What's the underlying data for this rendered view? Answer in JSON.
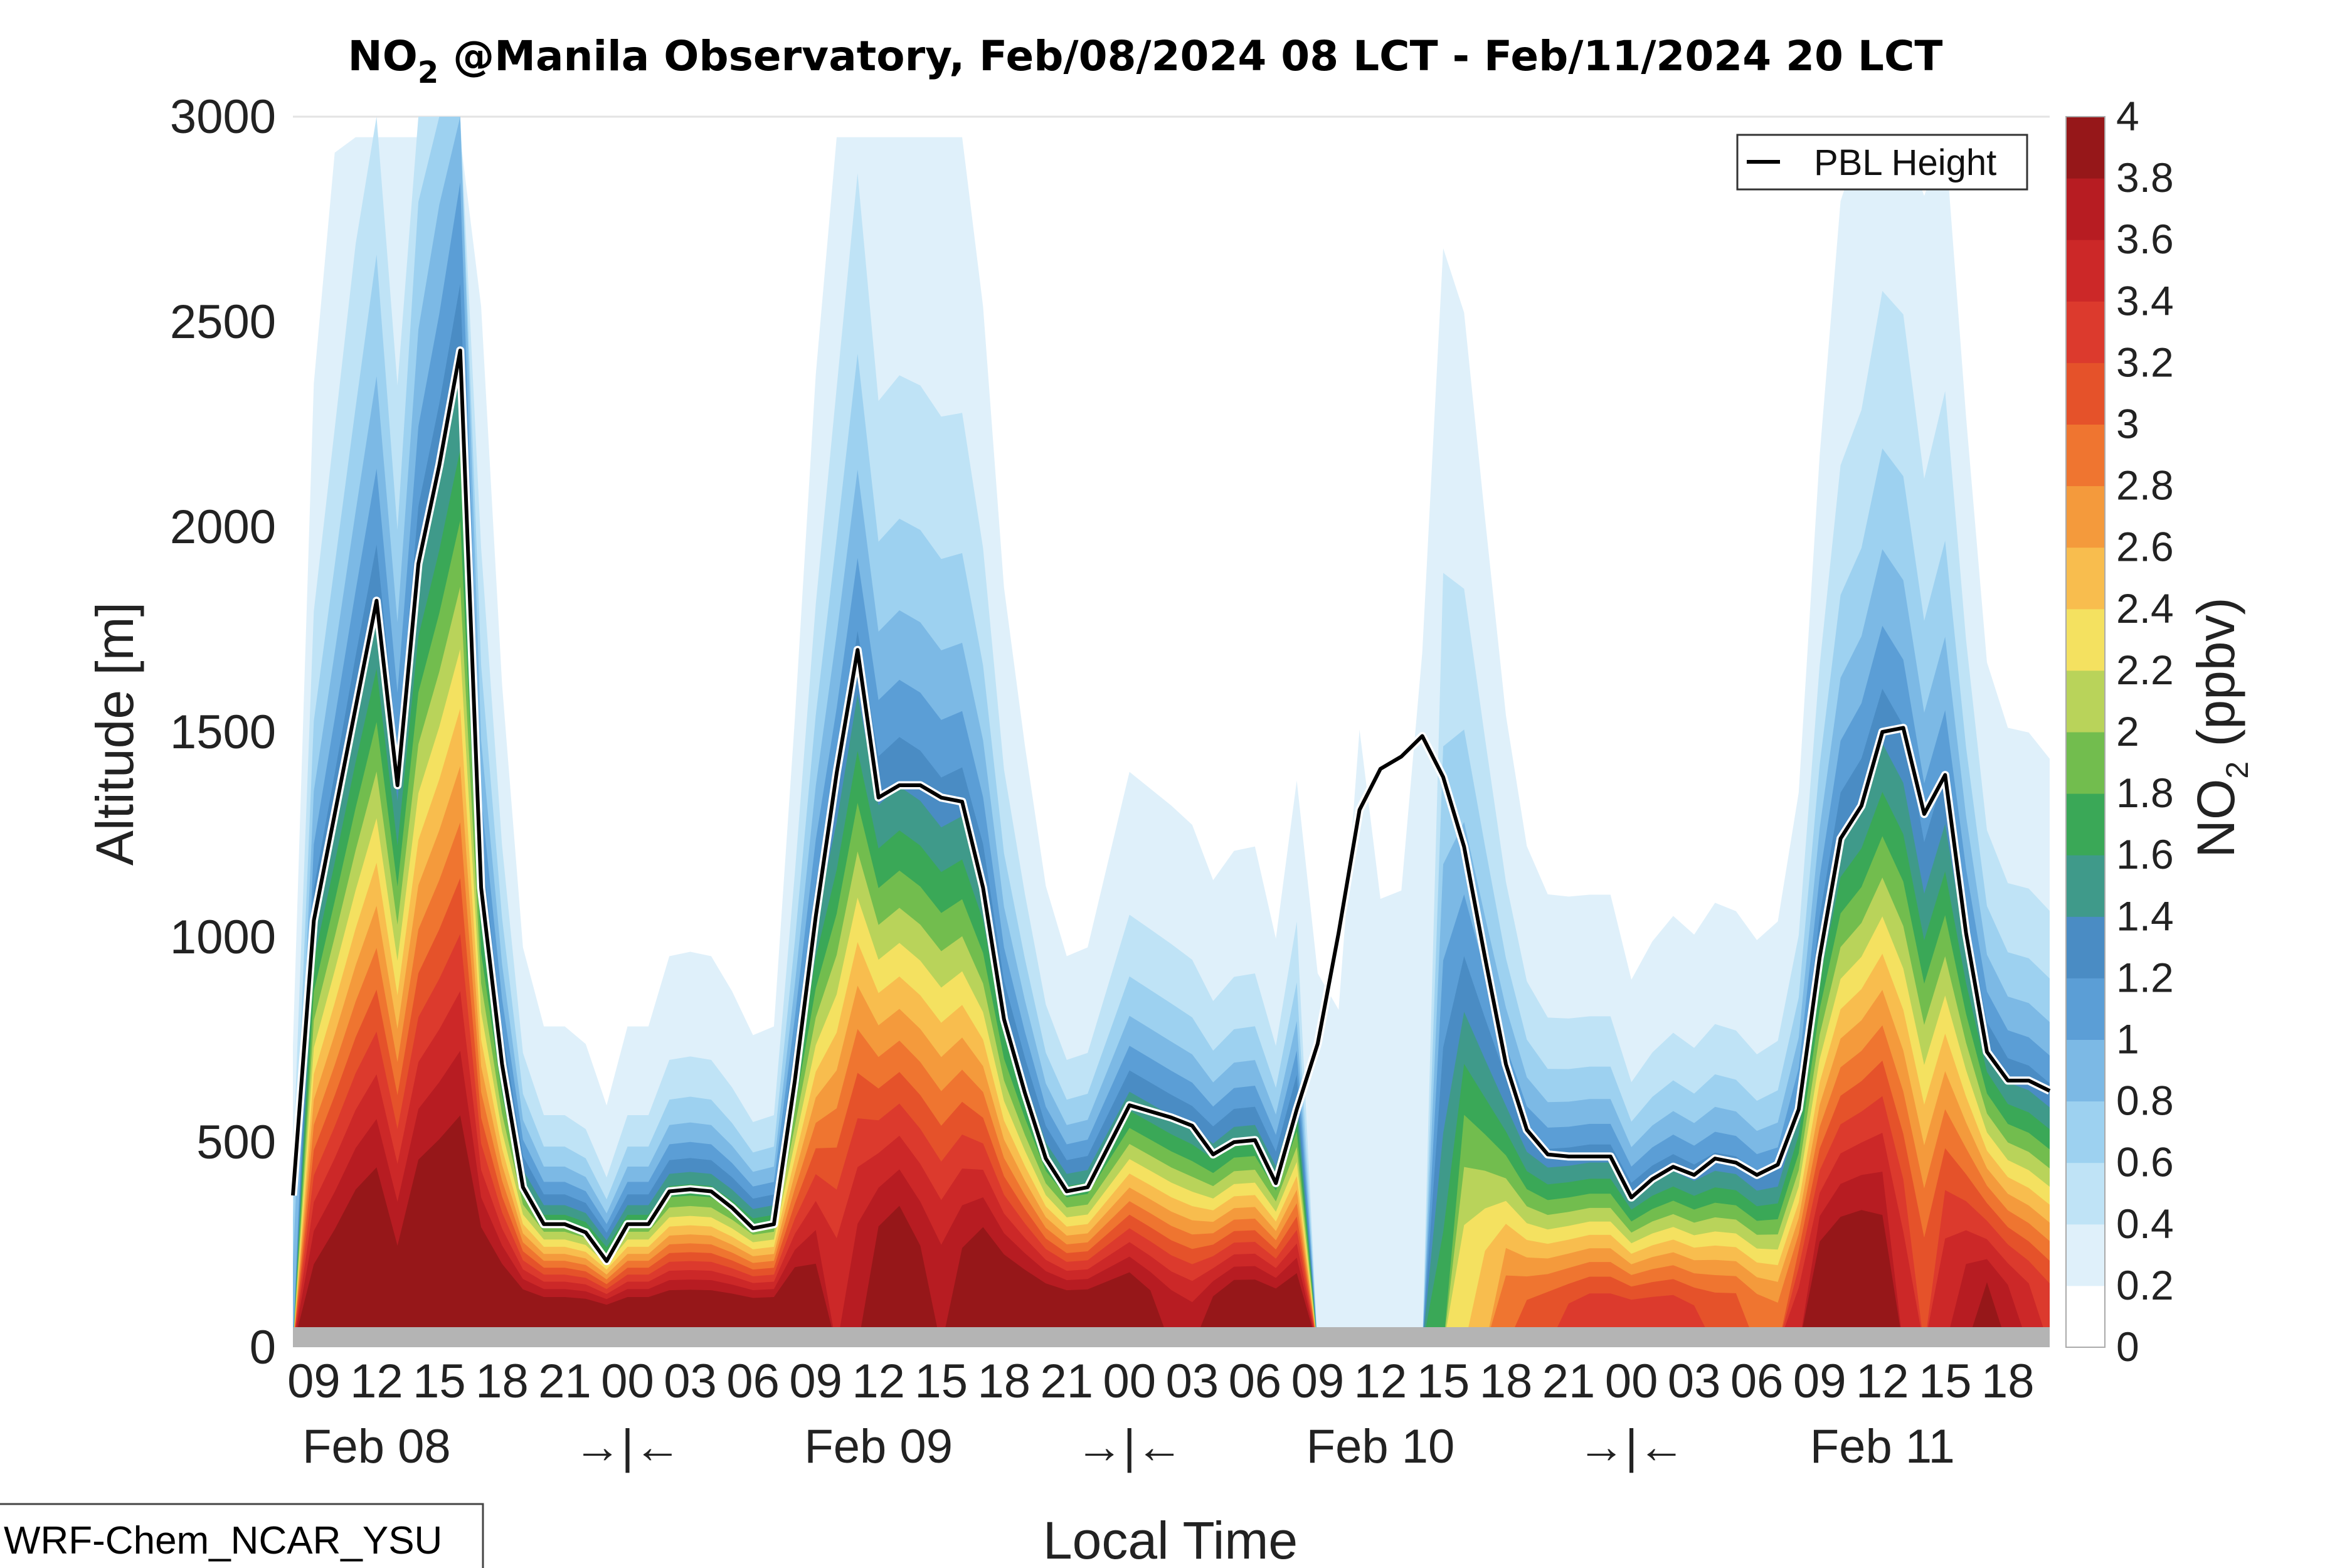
{
  "chart_data": {
    "type": "area",
    "title": "NO₂ @Manila Observatory, Feb/08/2024 08 LCT - Feb/11/2024 20 LCT",
    "title_parts": {
      "pre": "NO",
      "sub": "2",
      "post": " @Manila Observatory, Feb/08/2024 08 LCT - Feb/11/2024 20 LCT"
    },
    "xlabel": "Local Time",
    "ylabel": "Altitude [m]",
    "ylim": [
      0,
      3000
    ],
    "y_ticks": [
      0,
      500,
      1000,
      1500,
      2000,
      2500,
      3000
    ],
    "x_range_hours": [
      0,
      84
    ],
    "hour_tick_labels": [
      "09",
      "12",
      "15",
      "18",
      "21",
      "00",
      "03",
      "06",
      "09",
      "12",
      "15",
      "18",
      "21",
      "00",
      "03",
      "06",
      "09",
      "12",
      "15",
      "18",
      "21",
      "00",
      "03",
      "06",
      "09",
      "12",
      "15",
      "18"
    ],
    "date_labels": [
      "Feb 08",
      "Feb 09",
      "Feb 10",
      "Feb 11"
    ],
    "day_separator_label": "→|←",
    "colorbar": {
      "label_pre": "NO",
      "label_sub": "2",
      "label_post": " (ppbv)",
      "ticks": [
        "0",
        "0.2",
        "0.4",
        "0.6",
        "0.8",
        "1",
        "1.2",
        "1.4",
        "1.6",
        "1.8",
        "2",
        "2.2",
        "2.4",
        "2.6",
        "2.8",
        "3",
        "3.2",
        "3.4",
        "3.6",
        "3.8",
        "4"
      ],
      "colors": [
        "#ffffff",
        "#dff0fa",
        "#bfe3f6",
        "#9dd1f0",
        "#7cb9e5",
        "#5b9ed6",
        "#4a8cc4",
        "#3f9a8a",
        "#3aa857",
        "#72bd4e",
        "#b9d35a",
        "#f4e160",
        "#f8bd4e",
        "#f49a3c",
        "#ef7530",
        "#e5522a",
        "#dc3a2d",
        "#cc2828",
        "#b71c22",
        "#961719"
      ]
    },
    "legend": {
      "entries": [
        "PBL Height"
      ],
      "position": "top-right"
    },
    "grid": false,
    "source_label": "WRF-Chem_NCAR_YSU",
    "series": [
      {
        "name": "PBL Height",
        "x_hours": [
          0,
          1,
          2,
          3,
          4,
          5,
          6,
          7,
          8,
          9,
          10,
          11,
          12,
          13,
          14,
          15,
          16,
          17,
          18,
          19,
          20,
          21,
          22,
          23,
          24,
          25,
          26,
          27,
          28,
          29,
          30,
          31,
          32,
          33,
          34,
          35,
          36,
          37,
          38,
          39,
          40,
          41,
          42,
          43,
          44,
          45,
          46,
          47,
          48,
          49,
          50,
          51,
          52,
          53,
          54,
          55,
          56,
          57,
          58,
          59,
          60,
          61,
          62,
          63,
          64,
          65,
          66,
          67,
          68,
          69,
          70,
          71,
          72,
          73,
          74,
          75,
          76,
          77,
          78,
          79,
          80,
          81,
          82,
          83,
          84
        ],
        "values": [
          370,
          1040,
          1300,
          1560,
          1820,
          1370,
          1910,
          2150,
          2430,
          1120,
          690,
          390,
          300,
          300,
          280,
          210,
          300,
          300,
          380,
          385,
          380,
          340,
          290,
          300,
          650,
          1050,
          1400,
          1700,
          1340,
          1370,
          1370,
          1340,
          1330,
          1120,
          800,
          620,
          460,
          380,
          390,
          490,
          590,
          575,
          560,
          540,
          470,
          500,
          505,
          400,
          580,
          740,
          1010,
          1310,
          1410,
          1440,
          1490,
          1390,
          1220,
          950,
          690,
          530,
          470,
          465,
          465,
          465,
          365,
          410,
          440,
          420,
          460,
          450,
          420,
          445,
          580,
          950,
          1240,
          1320,
          1500,
          1510,
          1300,
          1395,
          1010,
          720,
          650,
          650,
          625
        ]
      }
    ],
    "no2_field": {
      "units": "ppbv",
      "columns": [
        {
          "x": 0,
          "surface": 3.6,
          "lower_envelope": [
            0.8,
            3.8,
            3.9,
            4.0,
            4.0,
            3.8,
            4.0,
            4.0,
            4.0,
            4.0,
            4.0,
            4.0,
            4.0,
            4.0,
            4.0,
            4.0,
            4.0,
            4.0,
            4.0,
            4.0,
            4.0,
            4.0,
            4.0,
            4.0,
            4.0,
            3.8,
            3.4,
            3.6,
            3.9,
            4.0,
            3.8,
            3.6,
            3.8,
            4.0,
            4.0,
            4.0,
            4.0,
            4.0,
            4.0,
            4.0,
            4.0,
            3.8,
            3.6,
            3.5,
            3.8,
            4.0,
            4.0,
            4.0,
            4.0,
            0.2,
            0.1,
            0.2,
            0.1,
            0.1,
            0.2,
            1.5,
            2.2,
            2.4,
            2.8,
            2.9,
            3.0,
            3.1,
            3.2,
            3.2,
            3.2,
            3.2,
            3.2,
            3.1,
            3.0,
            3.0,
            2.8,
            2.7,
            3.4,
            4.0,
            4.0,
            4.0,
            3.9,
            3.4,
            3.0,
            3.4,
            3.6,
            3.8,
            3.6,
            3.4,
            3.2
          ]
        }
      ]
    }
  }
}
